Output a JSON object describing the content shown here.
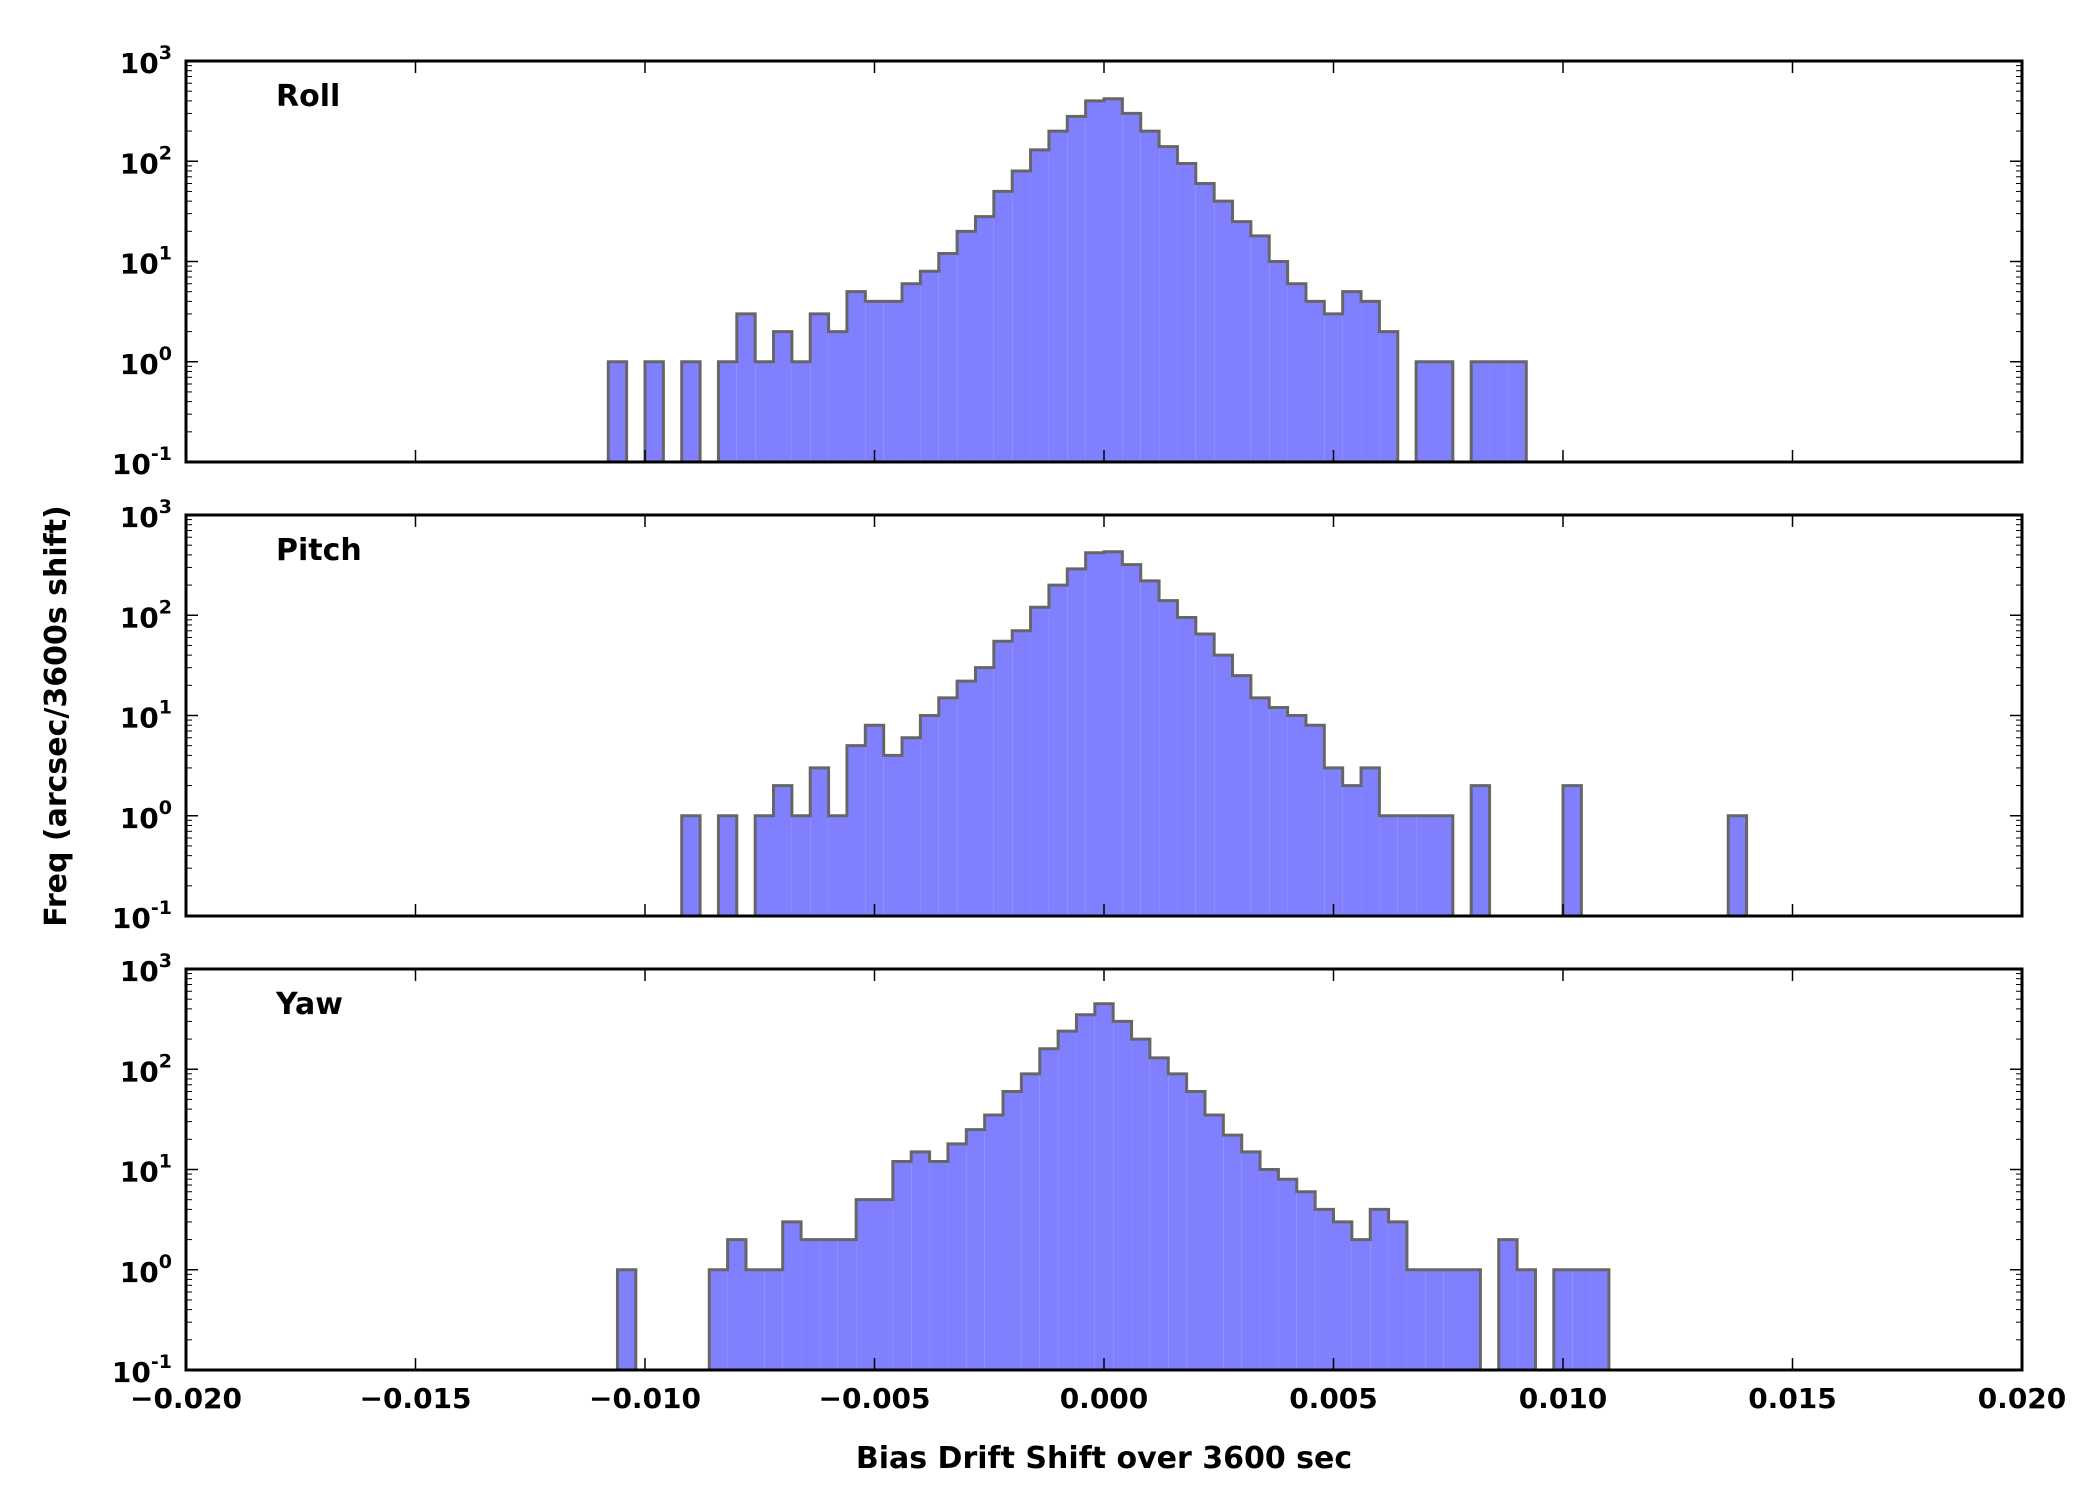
{
  "chart_data": {
    "type": "bar",
    "subtype": "step-histogram",
    "xlabel": "Bias Drift Shift over 3600 sec",
    "ylabel": "Freq (arcsec/3600s shift)",
    "xlim": [
      -0.02,
      0.02
    ],
    "ylim": [
      0.1,
      1000
    ],
    "yscale": "log",
    "grid": false,
    "fill_color": "#8080ff",
    "edge_color": "#666666",
    "x_ticks": [
      "−0.020",
      "−0.015",
      "−0.010",
      "−0.005",
      "0.000",
      "0.005",
      "0.010",
      "0.015",
      "0.020"
    ],
    "x_tick_values": [
      -0.02,
      -0.015,
      -0.01,
      -0.005,
      0,
      0.005,
      0.01,
      0.015,
      0.02
    ],
    "y_ticks": [
      {
        "base": "10",
        "exp": "-1"
      },
      {
        "base": "10",
        "exp": "0"
      },
      {
        "base": "10",
        "exp": "1"
      },
      {
        "base": "10",
        "exp": "2"
      },
      {
        "base": "10",
        "exp": "3"
      }
    ],
    "y_tick_values": [
      0.1,
      1,
      10,
      100,
      1000
    ],
    "bin_width": 0.0004,
    "series": [
      {
        "name": "Roll",
        "bin_start": -0.0108,
        "counts": [
          1,
          0,
          1,
          0,
          1,
          0,
          1,
          3,
          1,
          2,
          1,
          3,
          2,
          5,
          4,
          4,
          6,
          8,
          12,
          20,
          28,
          50,
          80,
          130,
          200,
          280,
          400,
          420,
          300,
          200,
          140,
          95,
          60,
          40,
          25,
          18,
          10,
          6,
          4,
          3,
          5,
          4,
          2,
          0,
          1,
          1,
          0,
          1,
          1,
          1
        ]
      },
      {
        "name": "Pitch",
        "bin_start": -0.0092,
        "counts": [
          1,
          0,
          1,
          0,
          1,
          2,
          1,
          3,
          1,
          5,
          8,
          4,
          6,
          10,
          15,
          22,
          30,
          55,
          70,
          120,
          200,
          290,
          420,
          430,
          320,
          220,
          140,
          95,
          65,
          40,
          25,
          15,
          12,
          10,
          8,
          3,
          2,
          3,
          1,
          1,
          1,
          1,
          0,
          2,
          0,
          0,
          0,
          0,
          2,
          0,
          0,
          0,
          0,
          0,
          0,
          0,
          0,
          1
        ]
      },
      {
        "name": "Yaw",
        "bin_start": -0.0106,
        "counts": [
          1,
          0,
          0,
          0,
          0,
          1,
          2,
          1,
          1,
          3,
          2,
          2,
          2,
          5,
          5,
          12,
          15,
          12,
          18,
          25,
          35,
          60,
          90,
          160,
          240,
          350,
          450,
          300,
          200,
          130,
          90,
          60,
          35,
          22,
          15,
          10,
          8,
          6,
          4,
          3,
          2,
          4,
          3,
          1,
          1,
          1,
          1,
          0,
          2,
          1,
          0,
          1,
          1,
          1
        ]
      }
    ]
  }
}
